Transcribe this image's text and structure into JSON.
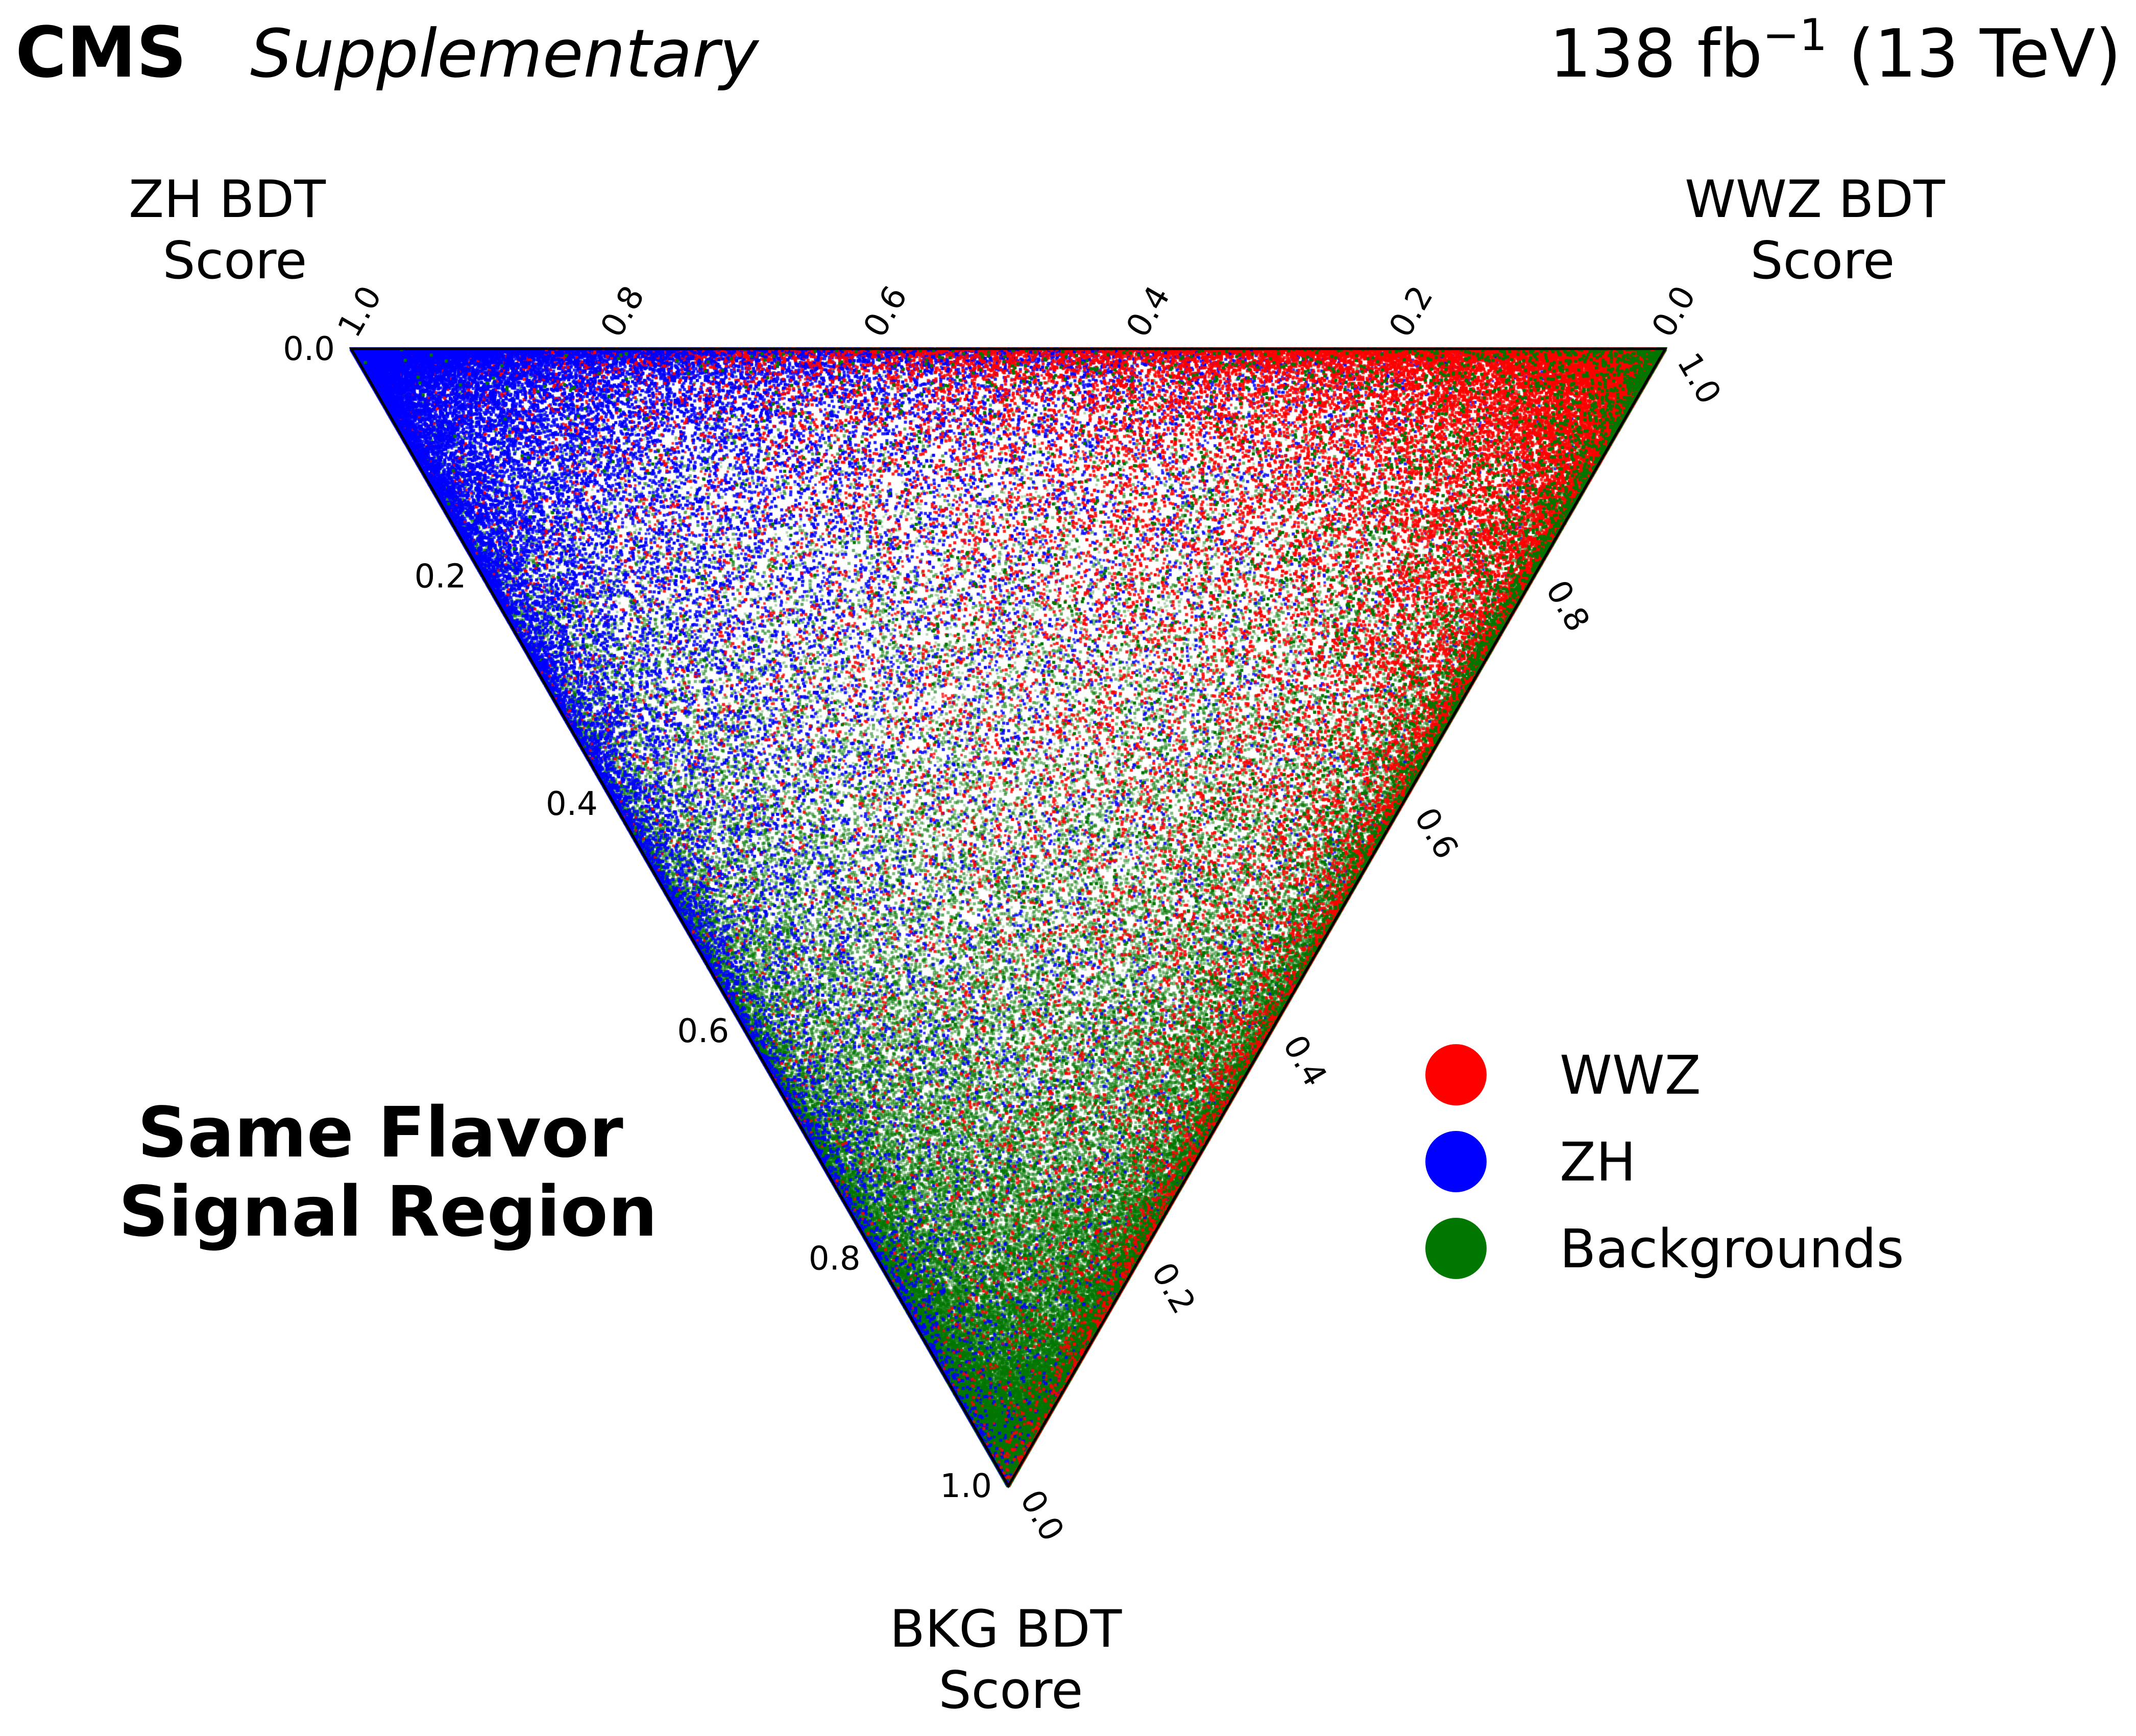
{
  "header": {
    "experiment": "CMS",
    "label": "Supplementary",
    "lumi_value": "138 fb",
    "lumi_exponent": "−1",
    "energy": " (13 TeV)"
  },
  "region": {
    "line1": "Same Flavor",
    "line2": "Signal Region"
  },
  "colors": {
    "wwz": "#ff0000",
    "zh": "#0000ff",
    "backgrounds": "#007700",
    "frame": "#000000"
  },
  "chart_data": {
    "type": "scatter",
    "projection": "ternary",
    "axes": {
      "zh": {
        "title_line1": "ZH BDT",
        "title_line2": "Score",
        "ticks": [
          0.0,
          0.2,
          0.4,
          0.6,
          0.8,
          1.0
        ],
        "tick_labels": [
          "0.0",
          "0.2",
          "0.4",
          "0.6",
          "0.8",
          "1.0"
        ]
      },
      "wwz": {
        "title_line1": "WWZ BDT",
        "title_line2": "Score",
        "ticks": [
          0.0,
          0.2,
          0.4,
          0.6,
          0.8,
          1.0
        ],
        "tick_labels": [
          "0.0",
          "0.2",
          "0.4",
          "0.6",
          "0.8",
          "1.0"
        ]
      },
      "bkg": {
        "title_line1": "BKG BDT",
        "title_line2": "Score",
        "ticks": [
          0.0,
          0.2,
          0.4,
          0.6,
          0.8,
          1.0
        ],
        "tick_labels": [
          "0.0",
          "0.2",
          "0.4",
          "0.6",
          "0.8",
          "1.0"
        ]
      }
    },
    "legend": {
      "position": "right",
      "entries": [
        {
          "name": "WWZ",
          "color": "#ff0000"
        },
        {
          "name": "ZH",
          "color": "#0000ff"
        },
        {
          "name": "Backgrounds",
          "color": "#007700"
        }
      ]
    },
    "series": [
      {
        "name": "Backgrounds",
        "concentration": "near BKG BDT score 1.0, dense along the BKG-ZH and BKG-WWZ edges",
        "approx_points": 60000,
        "mean_scores": {
          "bkg": 0.6,
          "zh": 0.25,
          "wwz": 0.15
        }
      },
      {
        "name": "ZH",
        "concentration": "near ZH BDT score 1.0, along the ZH-WWZ and ZH-BKG edges",
        "approx_points": 25000,
        "mean_scores": {
          "bkg": 0.25,
          "zh": 0.55,
          "wwz": 0.2
        }
      },
      {
        "name": "WWZ",
        "concentration": "near WWZ BDT score 1.0, along the WWZ-ZH and WWZ-BKG edges",
        "approx_points": 25000,
        "mean_scores": {
          "bkg": 0.25,
          "zh": 0.2,
          "wwz": 0.55
        }
      }
    ]
  }
}
